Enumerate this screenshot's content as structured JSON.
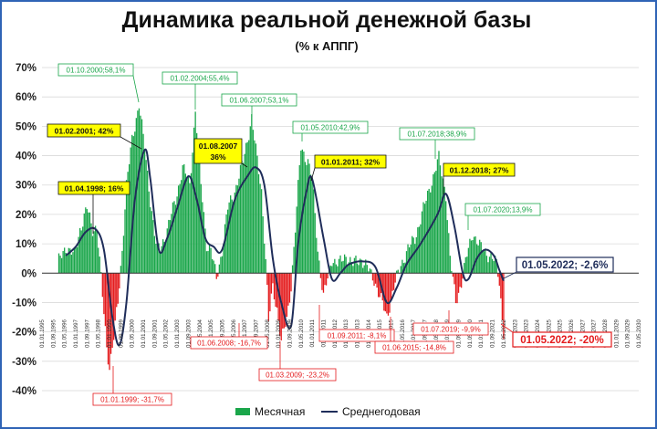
{
  "title": "Динамика реальной денежной базы",
  "subtitle": "(% к АППГ)",
  "chart_data": {
    "type": "bar",
    "title": "Динамика реальной денежной базы",
    "subtitle": "(% к АППГ)",
    "ylim": [
      -40,
      70
    ],
    "yticks": [
      "-40%",
      "-30%",
      "-20%",
      "-10%",
      "0%",
      "10%",
      "20%",
      "30%",
      "40%",
      "50%",
      "60%",
      "70%"
    ],
    "x_start": "1995-01",
    "x_end": "2030-05",
    "xtick_labels": [
      "01.01.1995",
      "01.09.1995",
      "01.05.1996",
      "01.01.1997",
      "01.09.1997",
      "01.05.1998",
      "01.01.1999",
      "01.09.1999",
      "01.05.2000",
      "01.01.2001",
      "01.09.2001",
      "01.05.2002",
      "01.01.2003",
      "01.09.2003",
      "01.05.2004",
      "01.01.2005",
      "01.09.2005",
      "01.05.2006",
      "01.01.2007",
      "01.09.2007",
      "01.05.2008",
      "01.01.2009",
      "01.09.2009",
      "01.05.2010",
      "01.01.2011",
      "01.09.2011",
      "01.05.2012",
      "01.01.2013",
      "01.09.2013",
      "01.05.2014",
      "01.01.2015",
      "01.09.2015",
      "01.05.2016",
      "01.01.2017",
      "01.09.2017",
      "01.05.2018",
      "01.01.2019",
      "01.09.2019",
      "01.05.2020",
      "01.01.2021",
      "01.09.2021",
      "01.05.2022",
      "01.01.2023",
      "01.09.2023",
      "01.05.2024",
      "01.01.2025",
      "01.09.2025",
      "01.05.2026",
      "01.01.2027",
      "01.09.2027",
      "01.05.2028",
      "01.01.2029",
      "01.09.2029",
      "01.05.2030"
    ],
    "series": [
      {
        "name": "Месячная",
        "type": "bar",
        "color_pos": "#1aa64a",
        "color_neg": "#e41a1c",
        "keypoints": [
          [
            "1996-01",
            4
          ],
          [
            "1996-06",
            9
          ],
          [
            "1996-12",
            6
          ],
          [
            "1997-04",
            15
          ],
          [
            "1997-09",
            22
          ],
          [
            "1998-01",
            15
          ],
          [
            "1998-04",
            16
          ],
          [
            "1998-08",
            -8
          ],
          [
            "1998-11",
            -25
          ],
          [
            "1999-01",
            -31.7
          ],
          [
            "1999-04",
            -22
          ],
          [
            "1999-07",
            -10
          ],
          [
            "1999-10",
            8
          ],
          [
            "2000-01",
            30
          ],
          [
            "2000-05",
            45
          ],
          [
            "2000-10",
            58.1
          ],
          [
            "2001-02",
            42
          ],
          [
            "2001-06",
            25
          ],
          [
            "2001-10",
            10
          ],
          [
            "2002-01",
            8
          ],
          [
            "2002-06",
            15
          ],
          [
            "2002-12",
            25
          ],
          [
            "2003-05",
            36
          ],
          [
            "2003-10",
            30
          ],
          [
            "2004-02",
            55.4
          ],
          [
            "2004-06",
            30
          ],
          [
            "2004-10",
            10
          ],
          [
            "2005-01",
            8
          ],
          [
            "2005-05",
            -2
          ],
          [
            "2005-09",
            8
          ],
          [
            "2006-01",
            22
          ],
          [
            "2006-06",
            28
          ],
          [
            "2006-12",
            38
          ],
          [
            "2007-06",
            53.1
          ],
          [
            "2007-10",
            38
          ],
          [
            "2008-01",
            28
          ],
          [
            "2008-04",
            5
          ],
          [
            "2008-06",
            -16.7
          ],
          [
            "2008-09",
            -5
          ],
          [
            "2008-12",
            -12
          ],
          [
            "2009-03",
            -23.2
          ],
          [
            "2009-07",
            -16
          ],
          [
            "2009-10",
            -4
          ],
          [
            "2010-01",
            15
          ],
          [
            "2010-05",
            42.9
          ],
          [
            "2010-10",
            38
          ],
          [
            "2011-01",
            32
          ],
          [
            "2011-05",
            8
          ],
          [
            "2011-09",
            -8.1
          ],
          [
            "2011-12",
            -2
          ],
          [
            "2012-03",
            5
          ],
          [
            "2012-08",
            3
          ],
          [
            "2013-01",
            6
          ],
          [
            "2013-06",
            3
          ],
          [
            "2013-12",
            5
          ],
          [
            "2014-05",
            1
          ],
          [
            "2014-09",
            -2
          ],
          [
            "2015-01",
            -8
          ],
          [
            "2015-06",
            -14.8
          ],
          [
            "2015-11",
            -5
          ],
          [
            "2016-04",
            3
          ],
          [
            "2016-09",
            8
          ],
          [
            "2017-02",
            12
          ],
          [
            "2017-07",
            20
          ],
          [
            "2018-01",
            30
          ],
          [
            "2018-07",
            38.9
          ],
          [
            "2018-12",
            27
          ],
          [
            "2019-03",
            5
          ],
          [
            "2019-07",
            -9.9
          ],
          [
            "2019-11",
            -3
          ],
          [
            "2020-03",
            6
          ],
          [
            "2020-07",
            13.9
          ],
          [
            "2020-12",
            9
          ],
          [
            "2021-05",
            7
          ],
          [
            "2021-09",
            5
          ],
          [
            "2021-12",
            3
          ],
          [
            "2022-02",
            -3
          ],
          [
            "2022-04",
            -15
          ],
          [
            "2022-05",
            -20
          ]
        ]
      },
      {
        "name": "Среднегодовая",
        "type": "line",
        "color": "#1f2d5a",
        "keypoints": [
          [
            "1996-06",
            6
          ],
          [
            "1997-01",
            9
          ],
          [
            "1997-08",
            14
          ],
          [
            "1998-03",
            15
          ],
          [
            "1998-09",
            8
          ],
          [
            "1999-03",
            -15
          ],
          [
            "1999-08",
            -24.5
          ],
          [
            "2000-01",
            -10
          ],
          [
            "2000-07",
            25
          ],
          [
            "2001-02",
            42
          ],
          [
            "2001-06",
            32
          ],
          [
            "2001-12",
            8
          ],
          [
            "2002-06",
            12
          ],
          [
            "2003-01",
            22
          ],
          [
            "2003-09",
            33
          ],
          [
            "2004-03",
            25
          ],
          [
            "2004-09",
            12
          ],
          [
            "2005-03",
            9
          ],
          [
            "2005-09",
            8
          ],
          [
            "2006-06",
            25
          ],
          [
            "2007-03",
            33
          ],
          [
            "2007-09",
            36
          ],
          [
            "2008-03",
            30
          ],
          [
            "2008-09",
            5
          ],
          [
            "2009-03",
            -10
          ],
          [
            "2009-10",
            -18
          ],
          [
            "2010-03",
            10
          ],
          [
            "2010-09",
            28
          ],
          [
            "2011-01",
            32
          ],
          [
            "2011-09",
            12
          ],
          [
            "2012-03",
            -2
          ],
          [
            "2012-09",
            0
          ],
          [
            "2013-03",
            3
          ],
          [
            "2014-01",
            4
          ],
          [
            "2014-10",
            2
          ],
          [
            "2015-06",
            -10
          ],
          [
            "2016-01",
            -5
          ],
          [
            "2016-08",
            3
          ],
          [
            "2017-06",
            10
          ],
          [
            "2018-06",
            20
          ],
          [
            "2018-12",
            27
          ],
          [
            "2019-06",
            16
          ],
          [
            "2019-12",
            0
          ],
          [
            "2020-04",
            -2
          ],
          [
            "2020-10",
            5
          ],
          [
            "2021-04",
            8
          ],
          [
            "2021-10",
            6
          ],
          [
            "2022-02",
            1
          ],
          [
            "2022-05",
            -2.6
          ]
        ]
      }
    ],
    "annotations": [
      {
        "text": "01.10.2000;58,1%",
        "style": "green"
      },
      {
        "text": "01.02.2004;55,4%",
        "style": "green"
      },
      {
        "text": "01.06.2007;53,1%",
        "style": "green"
      },
      {
        "text": "01.05.2010;42,9%",
        "style": "green"
      },
      {
        "text": "01.07.2018;38,9%",
        "style": "green"
      },
      {
        "text": "01.07.2020;13,9%",
        "style": "green"
      },
      {
        "text": "01.02.2001; 42%",
        "style": "yellow"
      },
      {
        "text": "01.04.1998; 16%",
        "style": "yellow"
      },
      {
        "text": "01.08.2007",
        "text2": "36%",
        "style": "yellow"
      },
      {
        "text": "01.01.2011; 32%",
        "style": "yellow"
      },
      {
        "text": "01.12.2018; 27%",
        "style": "yellow"
      },
      {
        "text": "01.05.2022; -2,6%",
        "style": "navy"
      },
      {
        "text": "01.01.1999; -31,7%",
        "style": "red"
      },
      {
        "text": "01.06.2008; -16,7%",
        "style": "red"
      },
      {
        "text": "01.03.2009; -23,2%",
        "style": "red"
      },
      {
        "text": "01.09.2011; -8,1%",
        "style": "red"
      },
      {
        "text": "01.06.2015; -14,8%",
        "style": "red"
      },
      {
        "text": "01.07.2019; -9,9%",
        "style": "red"
      },
      {
        "text": "01.05.2022; -20%",
        "style": "red-big"
      }
    ],
    "legend": {
      "position": "bottom",
      "items": [
        "Месячная",
        "Среднегодовая"
      ]
    }
  }
}
